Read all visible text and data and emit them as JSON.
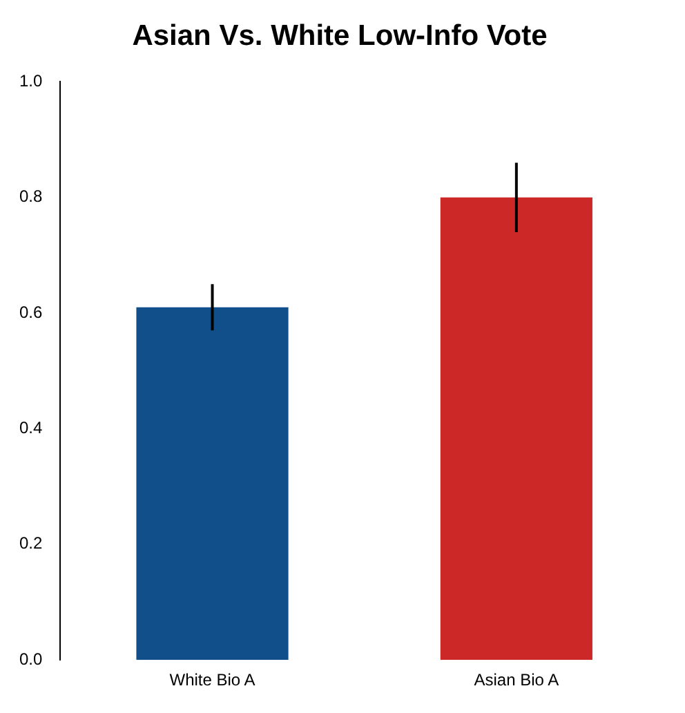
{
  "chart_data": {
    "type": "bar",
    "title": "Asian Vs. White Low-Info Vote",
    "categories": [
      "White Bio A",
      "Asian Bio A"
    ],
    "values": [
      0.61,
      0.8
    ],
    "colors": [
      "#114f8a",
      "#cc2828"
    ],
    "errors": [
      [
        0.57,
        0.65
      ],
      [
        0.74,
        0.86
      ]
    ],
    "ylim": [
      0,
      1
    ],
    "yticks": [
      {
        "value": 0,
        "label": "0.0"
      },
      0.2,
      0.4,
      0.6,
      0.8,
      {
        "value": 1,
        "label": "1.0"
      }
    ],
    "grid": false,
    "legend": false
  }
}
